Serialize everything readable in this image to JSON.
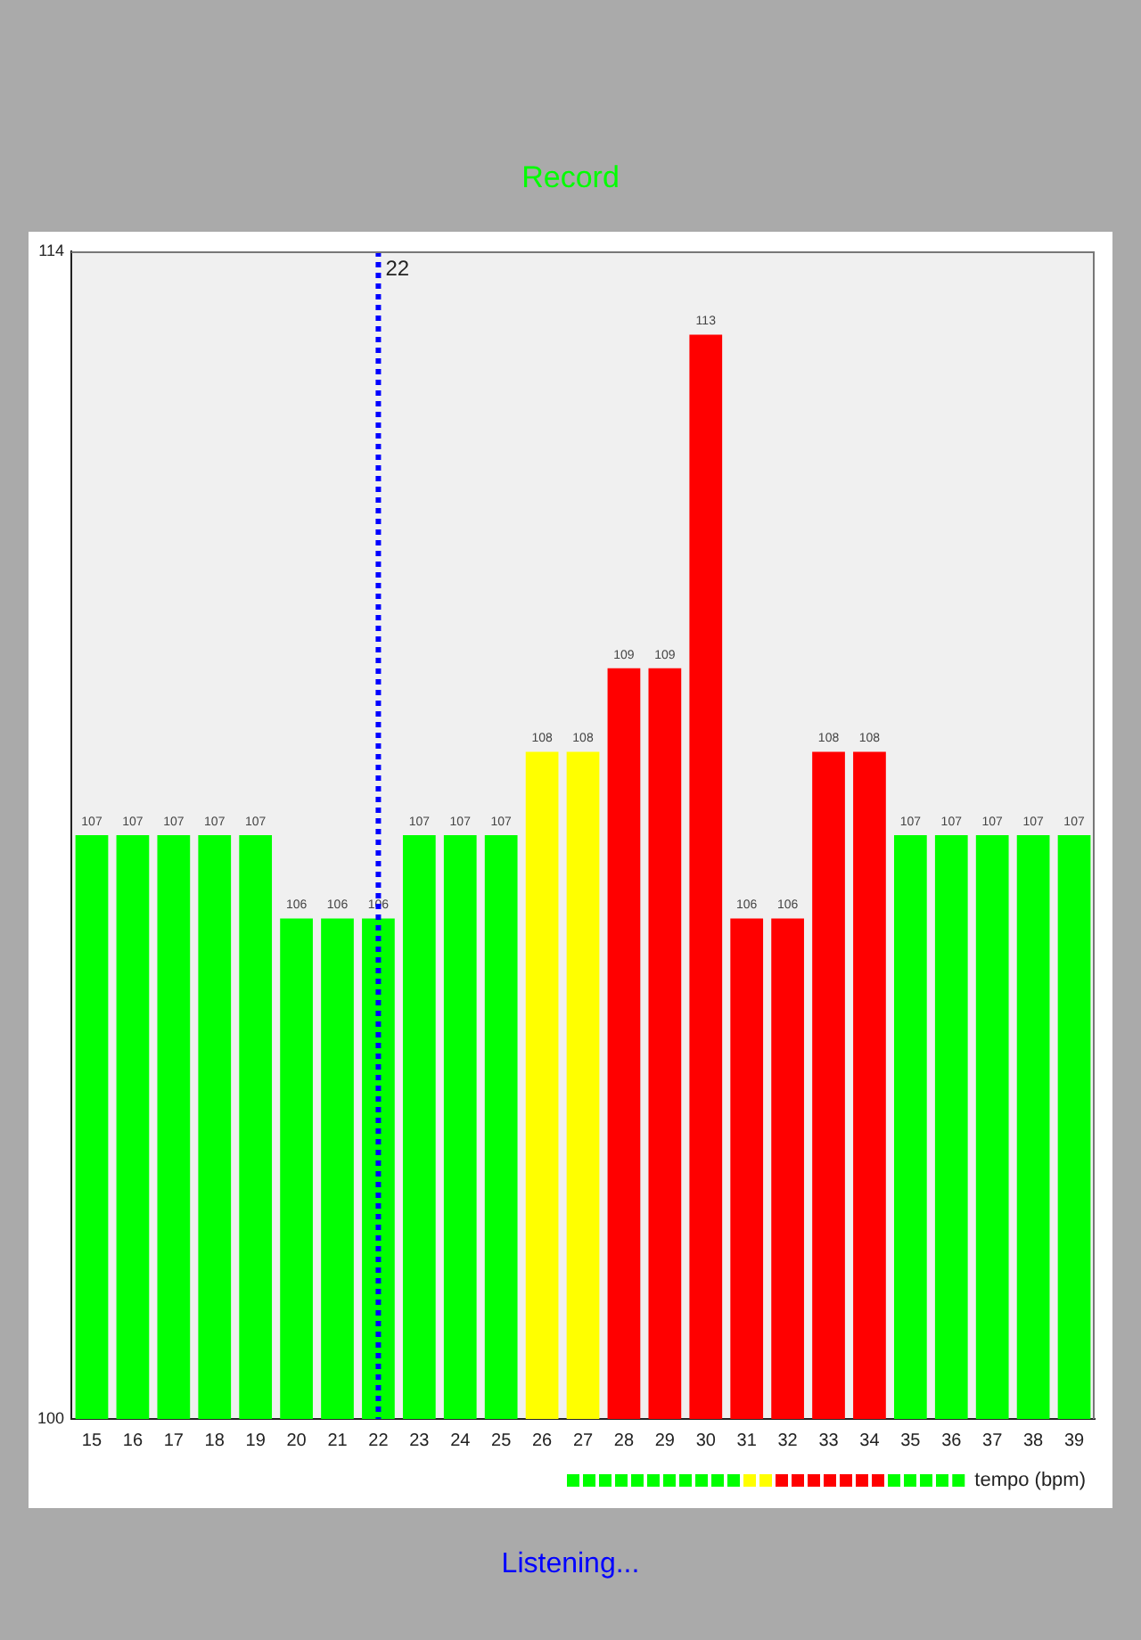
{
  "chart_data": {
    "type": "bar",
    "x": [
      15,
      16,
      17,
      18,
      19,
      20,
      21,
      22,
      23,
      24,
      25,
      26,
      27,
      28,
      29,
      30,
      31,
      32,
      33,
      34,
      35,
      36,
      37,
      38,
      39
    ],
    "series": [
      {
        "name": "tempo (bpm)",
        "values": [
          107,
          107,
          107,
          107,
          107,
          106,
          106,
          106,
          107,
          107,
          107,
          108,
          108,
          109,
          109,
          113,
          106,
          106,
          108,
          108,
          107,
          107,
          107,
          107,
          107
        ],
        "colors": [
          "#00ff00",
          "#00ff00",
          "#00ff00",
          "#00ff00",
          "#00ff00",
          "#00ff00",
          "#00ff00",
          "#00ff00",
          "#00ff00",
          "#00ff00",
          "#00ff00",
          "#ffff00",
          "#ffff00",
          "#ff0000",
          "#ff0000",
          "#ff0000",
          "#ff0000",
          "#ff0000",
          "#ff0000",
          "#ff0000",
          "#00ff00",
          "#00ff00",
          "#00ff00",
          "#00ff00",
          "#00ff00"
        ]
      }
    ],
    "xlim": [
      14.5,
      39.5
    ],
    "xticks": [
      15,
      16,
      17,
      18,
      19,
      20,
      21,
      22,
      23,
      24,
      25,
      26,
      27,
      28,
      29,
      30,
      31,
      32,
      33,
      34,
      35,
      36,
      37,
      38,
      39
    ],
    "ylim": [
      100,
      114
    ],
    "yticks": [
      100,
      114
    ],
    "data_labels": true,
    "grid": false,
    "legend": "bottom right",
    "ref_lines": [
      {
        "axis": "x",
        "value": 22,
        "label": "22",
        "color": "#0000ff",
        "line_style": "dotted"
      }
    ],
    "annotations": [
      "Record",
      "Listening..."
    ]
  }
}
